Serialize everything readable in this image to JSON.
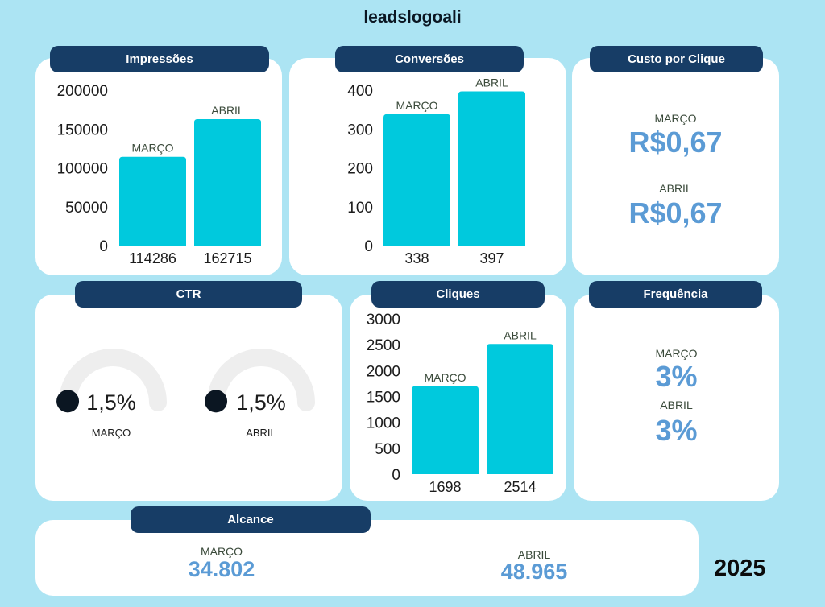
{
  "brand": "leadslogoali",
  "year": "2025",
  "colors": {
    "bar": "#00c9dd",
    "pill": "#173d66",
    "value": "#5b9bd5",
    "gauge_track": "#eeeeee",
    "gauge_dot": "#0b1622"
  },
  "chart_data": [
    {
      "id": "impressoes",
      "type": "bar",
      "title": "Impressões",
      "categories": [
        "MARÇO",
        "ABRIL"
      ],
      "values": [
        114286,
        162715
      ],
      "value_labels": [
        "114286",
        "162715"
      ],
      "yticks": [
        0,
        50000,
        100000,
        150000,
        200000
      ],
      "ylim": [
        0,
        200000
      ]
    },
    {
      "id": "conversoes",
      "type": "bar",
      "title": "Conversões",
      "categories": [
        "MARÇO",
        "ABRIL"
      ],
      "values": [
        338,
        397
      ],
      "value_labels": [
        "338",
        "397"
      ],
      "yticks": [
        0,
        100,
        200,
        300,
        400
      ],
      "ylim": [
        0,
        400
      ]
    },
    {
      "id": "cliques",
      "type": "bar",
      "title": "Cliques",
      "categories": [
        "MARÇO",
        "ABRIL"
      ],
      "values": [
        1698,
        2514
      ],
      "value_labels": [
        "1698",
        "2514"
      ],
      "yticks": [
        0,
        500,
        1000,
        1500,
        2000,
        2500,
        3000
      ],
      "ylim": [
        0,
        3000
      ]
    }
  ],
  "custo": {
    "title": "Custo por Clique",
    "m1_label": "MARÇO",
    "m1_value": "R$0,67",
    "m2_label": "ABRIL",
    "m2_value": "R$0,67"
  },
  "ctr": {
    "title": "CTR",
    "m1_label": "MARÇO",
    "m1_value": "1,5%",
    "m2_label": "ABRIL",
    "m2_value": "1,5%",
    "fraction": 0.015
  },
  "frequencia": {
    "title": "Frequência",
    "m1_label": "MARÇO",
    "m1_value": "3%",
    "m2_label": "ABRIL",
    "m2_value": "3%"
  },
  "alcance": {
    "title": "Alcance",
    "m1_label": "MARÇO",
    "m1_value": "34.802",
    "m2_label": "ABRIL",
    "m2_value": "48.965"
  }
}
